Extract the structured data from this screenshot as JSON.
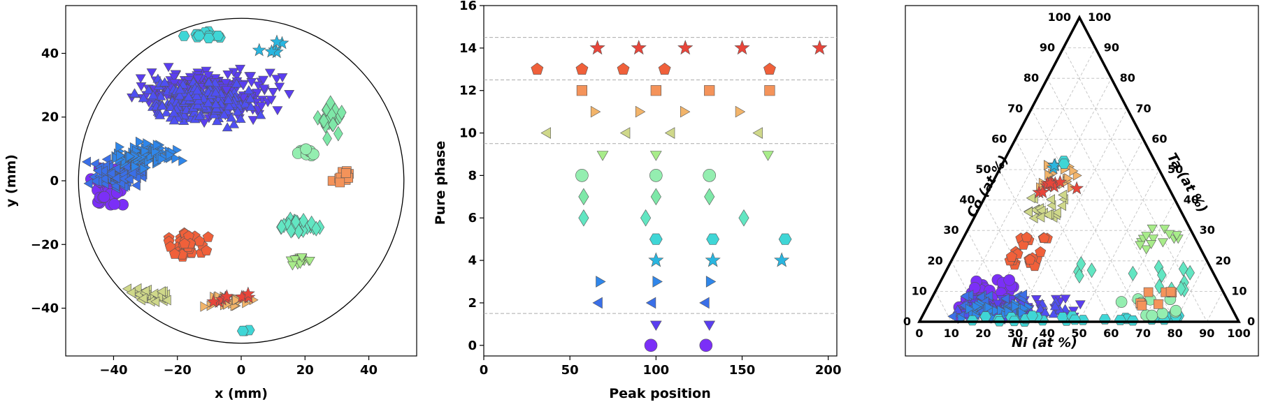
{
  "chart_data": [
    {
      "type": "scatter",
      "title": "",
      "xlabel": "x (mm)",
      "ylabel": "y (mm)",
      "xlim": [
        -55,
        55
      ],
      "ylim": [
        -55,
        55
      ],
      "xticks": [
        "−40",
        "−20",
        "0",
        "20",
        "40"
      ],
      "xtick_values": [
        -40,
        -20,
        0,
        20,
        40
      ],
      "yticks": [
        "−40",
        "−20",
        "0",
        "20",
        "40"
      ],
      "ytick_values": [
        -40,
        -20,
        0,
        20,
        40
      ],
      "wafer_radius": 51,
      "clusters": [
        {
          "phase": "circle-violet",
          "marker": "circle",
          "color": "#7b2ff7",
          "count": 60,
          "center": [
            -42,
            -2
          ],
          "spread": [
            8,
            8
          ]
        },
        {
          "phase": "triangle-down-indigo",
          "marker": "triangle-down",
          "color": "#5a3ef0",
          "count": 260,
          "center": [
            -10,
            28
          ],
          "spread": [
            28,
            10
          ]
        },
        {
          "phase": "triangle-up-indigo",
          "marker": "triangle-up",
          "color": "#4e4ff2",
          "count": 180,
          "center": [
            -14,
            24
          ],
          "spread": [
            24,
            9
          ]
        },
        {
          "phase": "triangle-left-blue",
          "marker": "triangle-left",
          "color": "#3a6fe8",
          "count": 90,
          "center": [
            -38,
            2
          ],
          "spread": [
            12,
            7
          ]
        },
        {
          "phase": "triangle-right-blue",
          "marker": "triangle-right",
          "color": "#2f86ea",
          "count": 80,
          "center": [
            -30,
            8
          ],
          "spread": [
            14,
            5
          ]
        },
        {
          "phase": "hexagon-cyan",
          "marker": "hexagon",
          "color": "#3fd6d6",
          "count": 14,
          "center": [
            -12,
            46
          ],
          "spread": [
            8,
            2
          ]
        },
        {
          "phase": "star-sky",
          "marker": "star",
          "color": "#29b6e0",
          "count": 6,
          "center": [
            10,
            42
          ],
          "spread": [
            6,
            3
          ]
        },
        {
          "phase": "diamond-mint",
          "marker": "diamond",
          "color": "#62e6c2",
          "count": 30,
          "center": [
            18,
            -14
          ],
          "spread": [
            8,
            3
          ]
        },
        {
          "phase": "diamond-green",
          "marker": "diamond",
          "color": "#7ee8a8",
          "count": 22,
          "center": [
            28,
            20
          ],
          "spread": [
            6,
            8
          ]
        },
        {
          "phase": "circle-green",
          "marker": "circle",
          "color": "#94eeb0",
          "count": 10,
          "center": [
            20,
            9
          ],
          "spread": [
            6,
            2
          ]
        },
        {
          "phase": "square-orange",
          "marker": "square",
          "color": "#f4935a",
          "count": 12,
          "center": [
            32,
            1
          ],
          "spread": [
            4,
            4
          ]
        },
        {
          "phase": "pentagon-red",
          "marker": "pentagon",
          "color": "#f0603a",
          "count": 40,
          "center": [
            -17,
            -20
          ],
          "spread": [
            8,
            6
          ]
        },
        {
          "phase": "triangle-down-lime",
          "marker": "triangle-down",
          "color": "#a8ec8a",
          "count": 18,
          "center": [
            18,
            -25
          ],
          "spread": [
            5,
            3
          ]
        },
        {
          "phase": "triangle-left-olive",
          "marker": "triangle-left",
          "color": "#cfd88a",
          "count": 40,
          "center": [
            -28,
            -36
          ],
          "spread": [
            9,
            3
          ]
        },
        {
          "phase": "triangle-right-sand",
          "marker": "triangle-right",
          "color": "#f2b46a",
          "count": 22,
          "center": [
            -4,
            -38
          ],
          "spread": [
            12,
            3
          ]
        },
        {
          "phase": "star-red",
          "marker": "star",
          "color": "#e8453a",
          "count": 10,
          "center": [
            -2,
            -37
          ],
          "spread": [
            12,
            2
          ]
        },
        {
          "phase": "hexagon-cyan-low",
          "marker": "hexagon",
          "color": "#3fd6d6",
          "count": 3,
          "center": [
            0,
            -47
          ],
          "spread": [
            7,
            1
          ]
        }
      ]
    },
    {
      "type": "scatter",
      "title": "",
      "xlabel": "Peak position",
      "ylabel": "Pure phase",
      "xlim": [
        0,
        205
      ],
      "ylim": [
        -0.5,
        16
      ],
      "xticks": [
        "0",
        "50",
        "100",
        "150",
        "200"
      ],
      "xtick_values": [
        0,
        50,
        100,
        150,
        200
      ],
      "yticks": [
        "0",
        "2",
        "4",
        "6",
        "8",
        "10",
        "12",
        "14",
        "16"
      ],
      "ytick_values": [
        0,
        2,
        4,
        6,
        8,
        10,
        12,
        14,
        16
      ],
      "dashed_lines_y": [
        1.5,
        9.5,
        12.5,
        14.5
      ],
      "phases": [
        {
          "y": 0,
          "marker": "circle",
          "color": "#7b2ff7",
          "x": [
            97,
            129
          ]
        },
        {
          "y": 1,
          "marker": "triangle-down",
          "color": "#5a3ef0",
          "x": [
            100,
            131
          ]
        },
        {
          "y": 2,
          "marker": "triangle-left",
          "color": "#3a6fe8",
          "x": [
            67,
            98,
            129
          ]
        },
        {
          "y": 3,
          "marker": "triangle-right",
          "color": "#2f86ea",
          "x": [
            67,
            100,
            131
          ]
        },
        {
          "y": 4,
          "marker": "star",
          "color": "#29b6e0",
          "x": [
            100,
            133,
            173
          ]
        },
        {
          "y": 5,
          "marker": "hexagon",
          "color": "#3fd6d6",
          "x": [
            100,
            133,
            175
          ]
        },
        {
          "y": 6,
          "marker": "diamond",
          "color": "#62e6c2",
          "x": [
            58,
            94,
            151
          ]
        },
        {
          "y": 7,
          "marker": "diamond",
          "color": "#7ee8a8",
          "x": [
            58,
            100,
            131
          ]
        },
        {
          "y": 8,
          "marker": "circle",
          "color": "#94eeb0",
          "x": [
            57,
            100,
            131
          ]
        },
        {
          "y": 9,
          "marker": "triangle-down",
          "color": "#a8ec8a",
          "x": [
            69,
            100,
            165
          ]
        },
        {
          "y": 10,
          "marker": "triangle-left",
          "color": "#cfd88a",
          "x": [
            37,
            83,
            109,
            160
          ]
        },
        {
          "y": 11,
          "marker": "triangle-right",
          "color": "#f2b46a",
          "x": [
            64,
            90,
            116,
            148
          ]
        },
        {
          "y": 12,
          "marker": "square",
          "color": "#f4935a",
          "x": [
            57,
            100,
            131,
            166
          ]
        },
        {
          "y": 13,
          "marker": "pentagon",
          "color": "#f0603a",
          "x": [
            31,
            57,
            81,
            105,
            166
          ]
        },
        {
          "y": 14,
          "marker": "star",
          "color": "#e8453a",
          "x": [
            66,
            90,
            117,
            150,
            195
          ]
        }
      ]
    },
    {
      "type": "ternary",
      "title": "",
      "bottom_label": "Ni (at %)",
      "left_label": "Co (at %)",
      "right_label": "Ta (at %)",
      "bottom_ticks": [
        "0",
        "10",
        "20",
        "30",
        "40",
        "50",
        "60",
        "70",
        "80",
        "90",
        "100"
      ],
      "left_ticks": [
        "100",
        "90",
        "80",
        "70",
        "60",
        "50",
        "40",
        "30",
        "20",
        "10",
        "0"
      ],
      "right_ticks": [
        "0",
        "10",
        "20",
        "30",
        "40",
        "50",
        "60",
        "70",
        "80",
        "90",
        "100"
      ],
      "clusters": [
        {
          "marker": "circle",
          "color": "#7b2ff7",
          "count": 40,
          "ni": [
            10,
            24
          ],
          "ta": [
            2,
            14
          ]
        },
        {
          "marker": "triangle-down",
          "color": "#5a3ef0",
          "count": 70,
          "ni": [
            12,
            48
          ],
          "ta": [
            1,
            8
          ]
        },
        {
          "marker": "triangle-up",
          "color": "#4e4ff2",
          "count": 50,
          "ni": [
            10,
            44
          ],
          "ta": [
            1,
            7
          ]
        },
        {
          "marker": "triangle-left",
          "color": "#3a6fe8",
          "count": 30,
          "ni": [
            8,
            30
          ],
          "ta": [
            1,
            9
          ]
        },
        {
          "marker": "triangle-right",
          "color": "#2f86ea",
          "count": 30,
          "ni": [
            10,
            32
          ],
          "ta": [
            1,
            6
          ]
        },
        {
          "marker": "hexagon",
          "color": "#3fd6d6",
          "count": 30,
          "ni": [
            10,
            82
          ],
          "ta": [
            0,
            2
          ]
        },
        {
          "marker": "diamond",
          "color": "#62e6c2",
          "count": 14,
          "ni": [
            40,
            78
          ],
          "ta": [
            10,
            20
          ]
        },
        {
          "marker": "triangle-down",
          "color": "#a8ec8a",
          "count": 14,
          "ni": [
            56,
            68
          ],
          "ta": [
            24,
            32
          ]
        },
        {
          "marker": "circle",
          "color": "#94eeb0",
          "count": 10,
          "ni": [
            58,
            80
          ],
          "ta": [
            2,
            8
          ]
        },
        {
          "marker": "square",
          "color": "#f4935a",
          "count": 8,
          "ni": [
            66,
            76
          ],
          "ta": [
            5,
            10
          ]
        },
        {
          "marker": "pentagon",
          "color": "#f0603a",
          "count": 24,
          "ni": [
            18,
            28
          ],
          "ta": [
            18,
            28
          ]
        },
        {
          "marker": "triangle-left",
          "color": "#cfd88a",
          "count": 22,
          "ni": [
            14,
            26
          ],
          "ta": [
            34,
            42
          ]
        },
        {
          "marker": "triangle-right",
          "color": "#f2b46a",
          "count": 16,
          "ni": [
            14,
            26
          ],
          "ta": [
            44,
            52
          ]
        },
        {
          "marker": "star",
          "color": "#e8453a",
          "count": 10,
          "ni": [
            16,
            28
          ],
          "ta": [
            42,
            46
          ]
        },
        {
          "marker": "star",
          "color": "#29b6e0",
          "count": 3,
          "ni": [
            16,
            18
          ],
          "ta": [
            50,
            52
          ]
        },
        {
          "marker": "hexagon",
          "color": "#3fd6d6",
          "count": 2,
          "ni": [
            18,
            20
          ],
          "ta": [
            51,
            53
          ]
        }
      ]
    }
  ]
}
